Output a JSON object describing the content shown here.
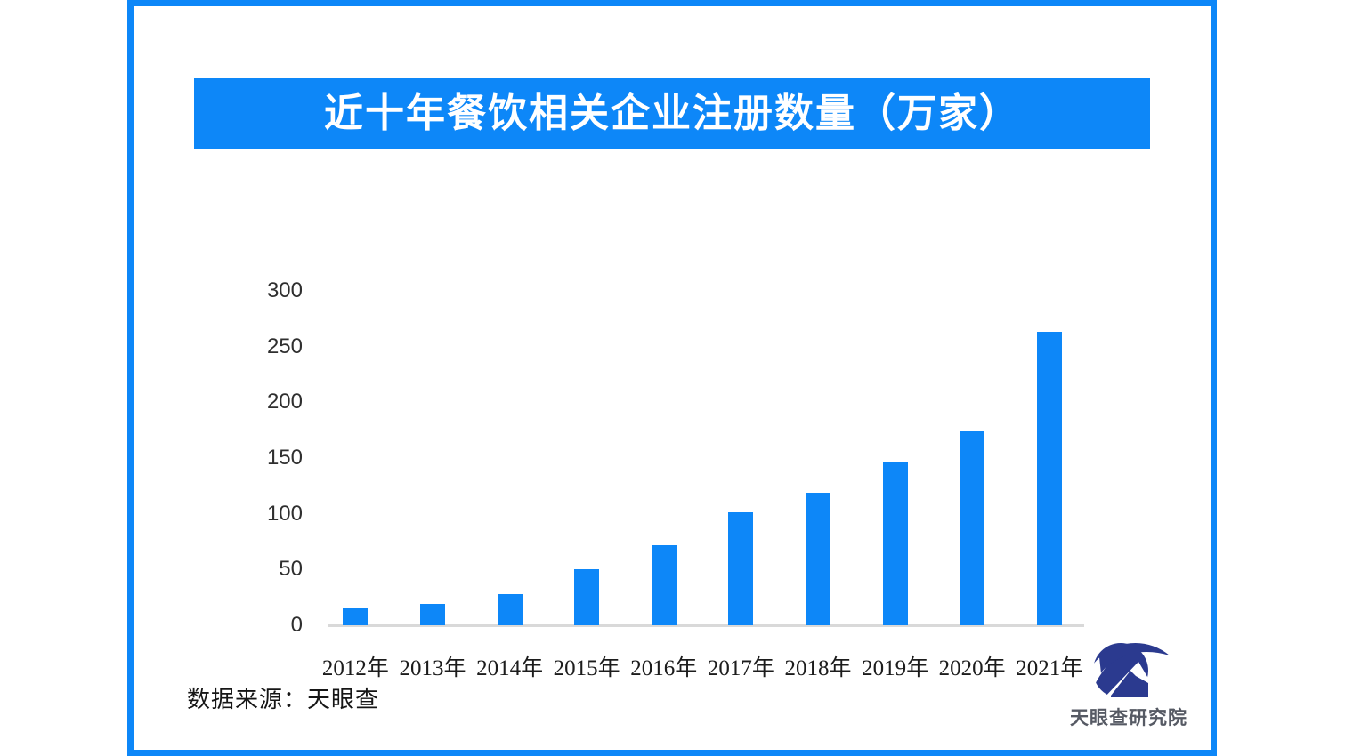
{
  "title": {
    "text": "近十年餐饮相关企业注册数量（万家）"
  },
  "chart_data": {
    "type": "bar",
    "title": "近十年餐饮相关企业注册数量（万家）",
    "categories": [
      "2012年",
      "2013年",
      "2014年",
      "2015年",
      "2016年",
      "2017年",
      "2018年",
      "2019年",
      "2020年",
      "2021年"
    ],
    "values": [
      15,
      19,
      28,
      50,
      72,
      101,
      119,
      146,
      174,
      263
    ],
    "unit": "万家",
    "xlabel": "",
    "ylabel": "",
    "ylim": [
      0,
      300
    ],
    "yticks": [
      0,
      50,
      100,
      150,
      200,
      250,
      300
    ],
    "grid": false,
    "legend": false,
    "bar_color": "#0d87f8",
    "axis_color": "#d9d9d9"
  },
  "source": {
    "label": "数据来源：天眼查"
  },
  "logo": {
    "label": "天眼查研究院",
    "icon": "tianyancha-eye-logo",
    "mark_color": "#2b3a8f",
    "label_color": "#565a64"
  },
  "frame": {
    "border_color": "#0d87f8",
    "banner_color": "#0d87f8"
  }
}
